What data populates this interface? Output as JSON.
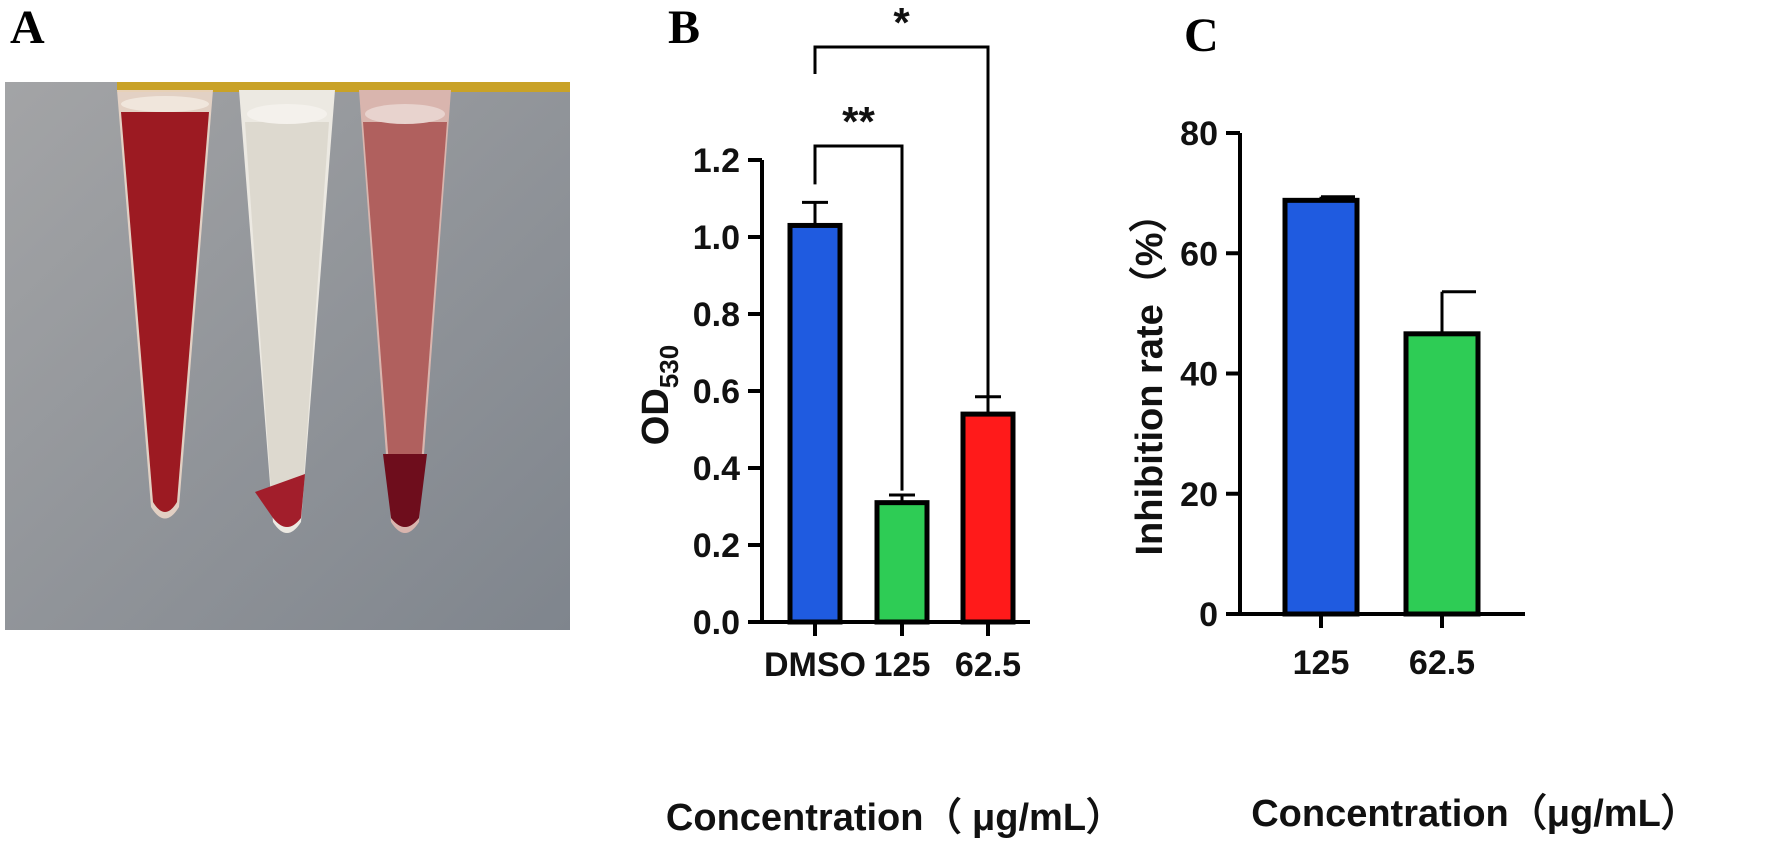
{
  "panels": {
    "a_label": "A",
    "b_label": "B",
    "c_label": "C"
  },
  "photo": {
    "tubes": [
      {
        "name": "tube-1",
        "liquid": "#9c1a22"
      },
      {
        "name": "tube-2",
        "liquid": "#e3e0d6"
      },
      {
        "name": "tube-3",
        "liquid": "#b0605e"
      }
    ],
    "background": "#8e9196",
    "tape": "#c9a227"
  },
  "chart_data": [
    {
      "type": "bar",
      "categories": [
        "DMSO",
        "125",
        "62.5"
      ],
      "values": [
        1.03,
        0.31,
        0.54
      ],
      "errors": [
        0.06,
        0.02,
        0.045
      ],
      "colors": [
        "#1f5be0",
        "#2ecc55",
        "#ff1a1a"
      ],
      "xlabel": "Concentration（ μg/mL）",
      "ylabel_main": "OD",
      "ylabel_sub": "530",
      "ylim": [
        0,
        1.2
      ],
      "yticks": [
        "0.0",
        "0.2",
        "0.4",
        "0.6",
        "0.8",
        "1.0",
        "1.2"
      ],
      "significance": [
        {
          "from": "DMSO",
          "to": "125",
          "label": "**"
        },
        {
          "from": "DMSO",
          "to": "62.5",
          "label": "*"
        }
      ]
    },
    {
      "type": "bar",
      "categories": [
        "125",
        "62.5"
      ],
      "values": [
        68.8,
        46.6
      ],
      "errors": [
        0.6,
        7.0
      ],
      "colors": [
        "#1f5be0",
        "#2ecc55"
      ],
      "xlabel": "Concentration（μg/mL）",
      "ylabel": "Inhibition rate（%）",
      "ylim": [
        0,
        80
      ],
      "yticks": [
        "0",
        "20",
        "40",
        "60",
        "80"
      ]
    }
  ]
}
